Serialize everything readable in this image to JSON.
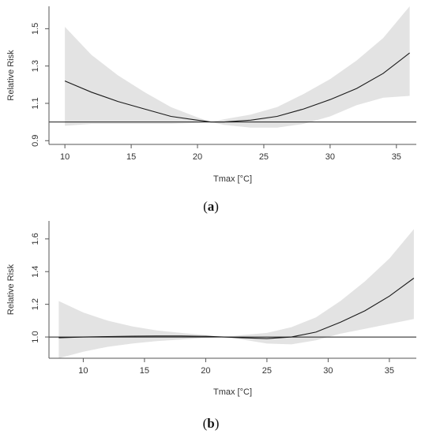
{
  "chart_data": [
    {
      "type": "line",
      "panel_label": "(a)",
      "panel_letter": "a",
      "xlabel": "Tmax [°C]",
      "ylabel": "Relative Risk",
      "xlim": [
        8.8,
        36.5
      ],
      "ylim": [
        0.88,
        1.62
      ],
      "xticks": [
        10,
        15,
        20,
        25,
        30,
        35
      ],
      "yticks": [
        0.9,
        1.1,
        1.3,
        1.5
      ],
      "ytick_labels": [
        "0.9",
        "1.1",
        "1.3",
        "1.5"
      ],
      "reference_line": 1.0,
      "grid": false,
      "colors": {
        "line": "#1a1a1a",
        "band": "#e3e3e3",
        "axis": "#555555"
      },
      "series": [
        {
          "x": [
            10,
            12,
            14,
            16,
            18,
            20,
            21,
            22,
            24,
            26,
            28,
            30,
            32,
            34,
            36
          ],
          "y": [
            1.22,
            1.16,
            1.11,
            1.07,
            1.03,
            1.01,
            1.0,
            1.0,
            1.01,
            1.03,
            1.07,
            1.12,
            1.18,
            1.26,
            1.37
          ],
          "lower": [
            0.98,
            0.99,
            0.99,
            0.99,
            0.99,
            0.995,
            1.0,
            0.985,
            0.97,
            0.97,
            0.99,
            1.03,
            1.09,
            1.13,
            1.14
          ],
          "upper": [
            1.51,
            1.36,
            1.25,
            1.16,
            1.08,
            1.025,
            1.0,
            1.015,
            1.04,
            1.08,
            1.15,
            1.23,
            1.33,
            1.45,
            1.62
          ]
        }
      ]
    },
    {
      "type": "line",
      "panel_label": "(b)",
      "panel_letter": "b",
      "xlabel": "Tmax [°C]",
      "ylabel": "Relative Risk",
      "xlim": [
        7.2,
        37.2
      ],
      "ylim": [
        0.87,
        1.71
      ],
      "xticks": [
        10,
        15,
        20,
        25,
        30,
        35
      ],
      "yticks": [
        1.0,
        1.2,
        1.4,
        1.6
      ],
      "ytick_labels": [
        "1.0",
        "1.2",
        "1.4",
        "1.6"
      ],
      "reference_line": 1.0,
      "grid": false,
      "colors": {
        "line": "#1a1a1a",
        "band": "#e3e3e3",
        "axis": "#555555"
      },
      "series": [
        {
          "x": [
            8,
            10,
            12,
            14,
            16,
            18,
            20,
            21.5,
            23,
            25,
            27,
            29,
            31,
            33,
            35,
            37
          ],
          "y": [
            0.995,
            1.0,
            1.003,
            1.005,
            1.006,
            1.006,
            1.004,
            1.0,
            0.995,
            0.99,
            1.0,
            1.03,
            1.09,
            1.16,
            1.25,
            1.36
          ],
          "lower": [
            0.87,
            0.91,
            0.94,
            0.96,
            0.975,
            0.985,
            0.995,
            1.0,
            0.985,
            0.96,
            0.955,
            0.98,
            1.02,
            1.05,
            1.08,
            1.11
          ],
          "upper": [
            1.22,
            1.15,
            1.1,
            1.065,
            1.04,
            1.025,
            1.012,
            1.0,
            1.012,
            1.025,
            1.06,
            1.12,
            1.22,
            1.34,
            1.48,
            1.66
          ]
        }
      ]
    }
  ]
}
